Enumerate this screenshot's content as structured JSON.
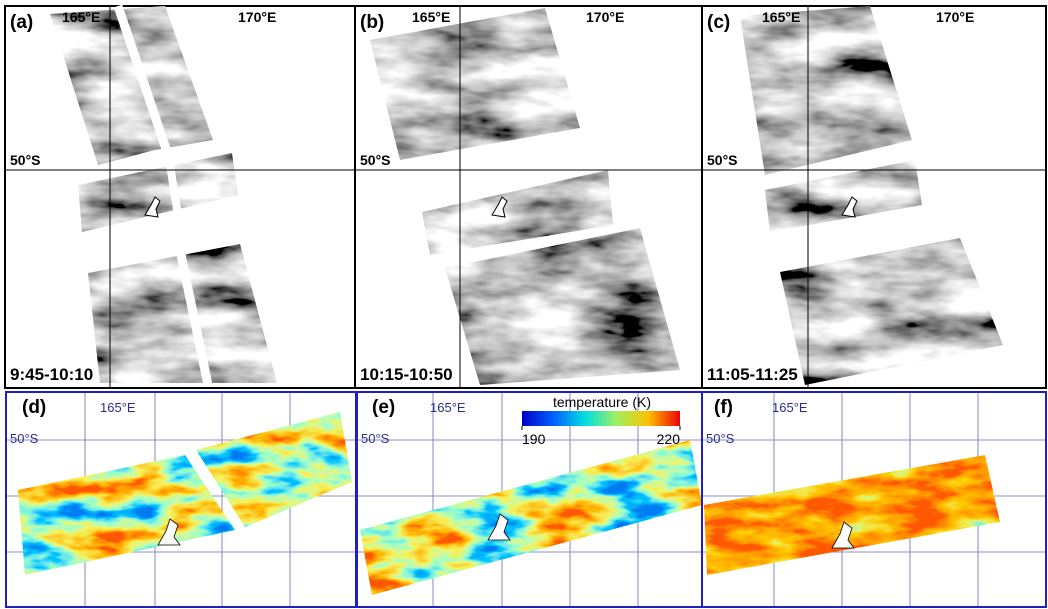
{
  "panels": [
    {
      "label": "(a)",
      "lon_labels": [
        "165°E",
        "170°E"
      ],
      "lat_label": "50°S",
      "time": "9:45-10:10"
    },
    {
      "label": "(b)",
      "lon_labels": [
        "165°E",
        "170°E"
      ],
      "lat_label": "50°S",
      "time": "10:15-10:50"
    },
    {
      "label": "(c)",
      "lon_labels": [
        "165°E",
        "170°E"
      ],
      "lat_label": "50°S",
      "time": "11:05-11:25"
    },
    {
      "label": "(d)",
      "lon_label": "165°E",
      "lat_label": "50°S"
    },
    {
      "label": "(e)",
      "lon_label": "165°E",
      "lat_label": "50°S"
    },
    {
      "label": "(f)",
      "lon_label": "165°E",
      "lat_label": "50°S"
    }
  ],
  "colorbar": {
    "title": "temperature (K)",
    "ticks": [
      190,
      220
    ]
  }
}
